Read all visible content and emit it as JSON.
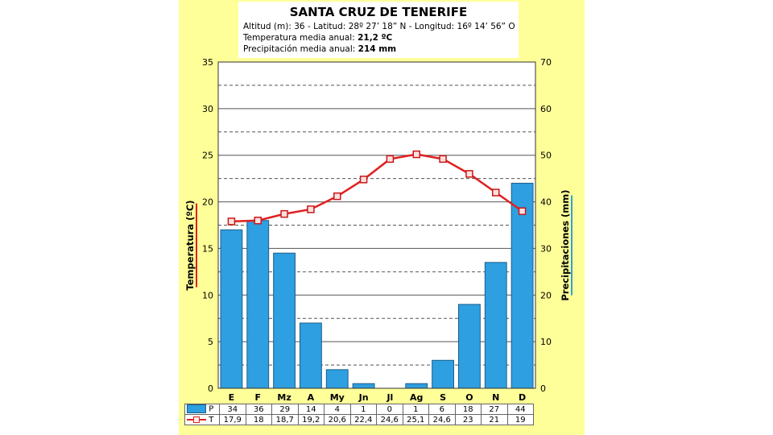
{
  "header": {
    "title": "SANTA CRUZ DE TENERIFE",
    "loc_label_alt": "Altitud (m):",
    "alt_value": "36",
    "loc_label_lat": "- Latitud:",
    "lat_value": "28º 27’ 18” N",
    "loc_label_lon": "- Longitud:",
    "lon_value": "16º 14’ 56” O",
    "temp_label": "Temperatura media anual:",
    "temp_value": "21,2 ºC",
    "prec_label": "Precipitación media anual:",
    "prec_value": "214 mm"
  },
  "chart_data": {
    "type": "bar+line",
    "categories": [
      "E",
      "F",
      "Mz",
      "A",
      "My",
      "Jn",
      "Jl",
      "Ag",
      "S",
      "O",
      "N",
      "D"
    ],
    "series": [
      {
        "name": "P",
        "kind": "bar",
        "axis": "right",
        "color": "#2e9fe0",
        "values": [
          34,
          36,
          29,
          14,
          4,
          1,
          0,
          1,
          6,
          18,
          27,
          44
        ],
        "labels": [
          "34",
          "36",
          "29",
          "14",
          "4",
          "1",
          "0",
          "1",
          "6",
          "18",
          "27",
          "44"
        ]
      },
      {
        "name": "T",
        "kind": "line",
        "axis": "left",
        "color": "#e02020",
        "values": [
          17.9,
          18,
          18.7,
          19.2,
          20.6,
          22.4,
          24.6,
          25.1,
          24.6,
          23,
          21,
          19
        ],
        "labels": [
          "17,9",
          "18",
          "18,7",
          "19,2",
          "20,6",
          "22,4",
          "24,6",
          "25,1",
          "24,6",
          "23",
          "21",
          "19"
        ]
      }
    ],
    "ylabel_left": "Temperatura (ºC)",
    "ylabel_right": "Precipitaciones (mm)",
    "ylim_left": [
      0,
      35
    ],
    "ylim_right": [
      0,
      70
    ],
    "yticks_left": [
      0,
      5,
      10,
      15,
      20,
      25,
      30,
      35
    ],
    "yticks_right": [
      0,
      10,
      20,
      30,
      40,
      50,
      60,
      70
    ],
    "grid": true
  }
}
